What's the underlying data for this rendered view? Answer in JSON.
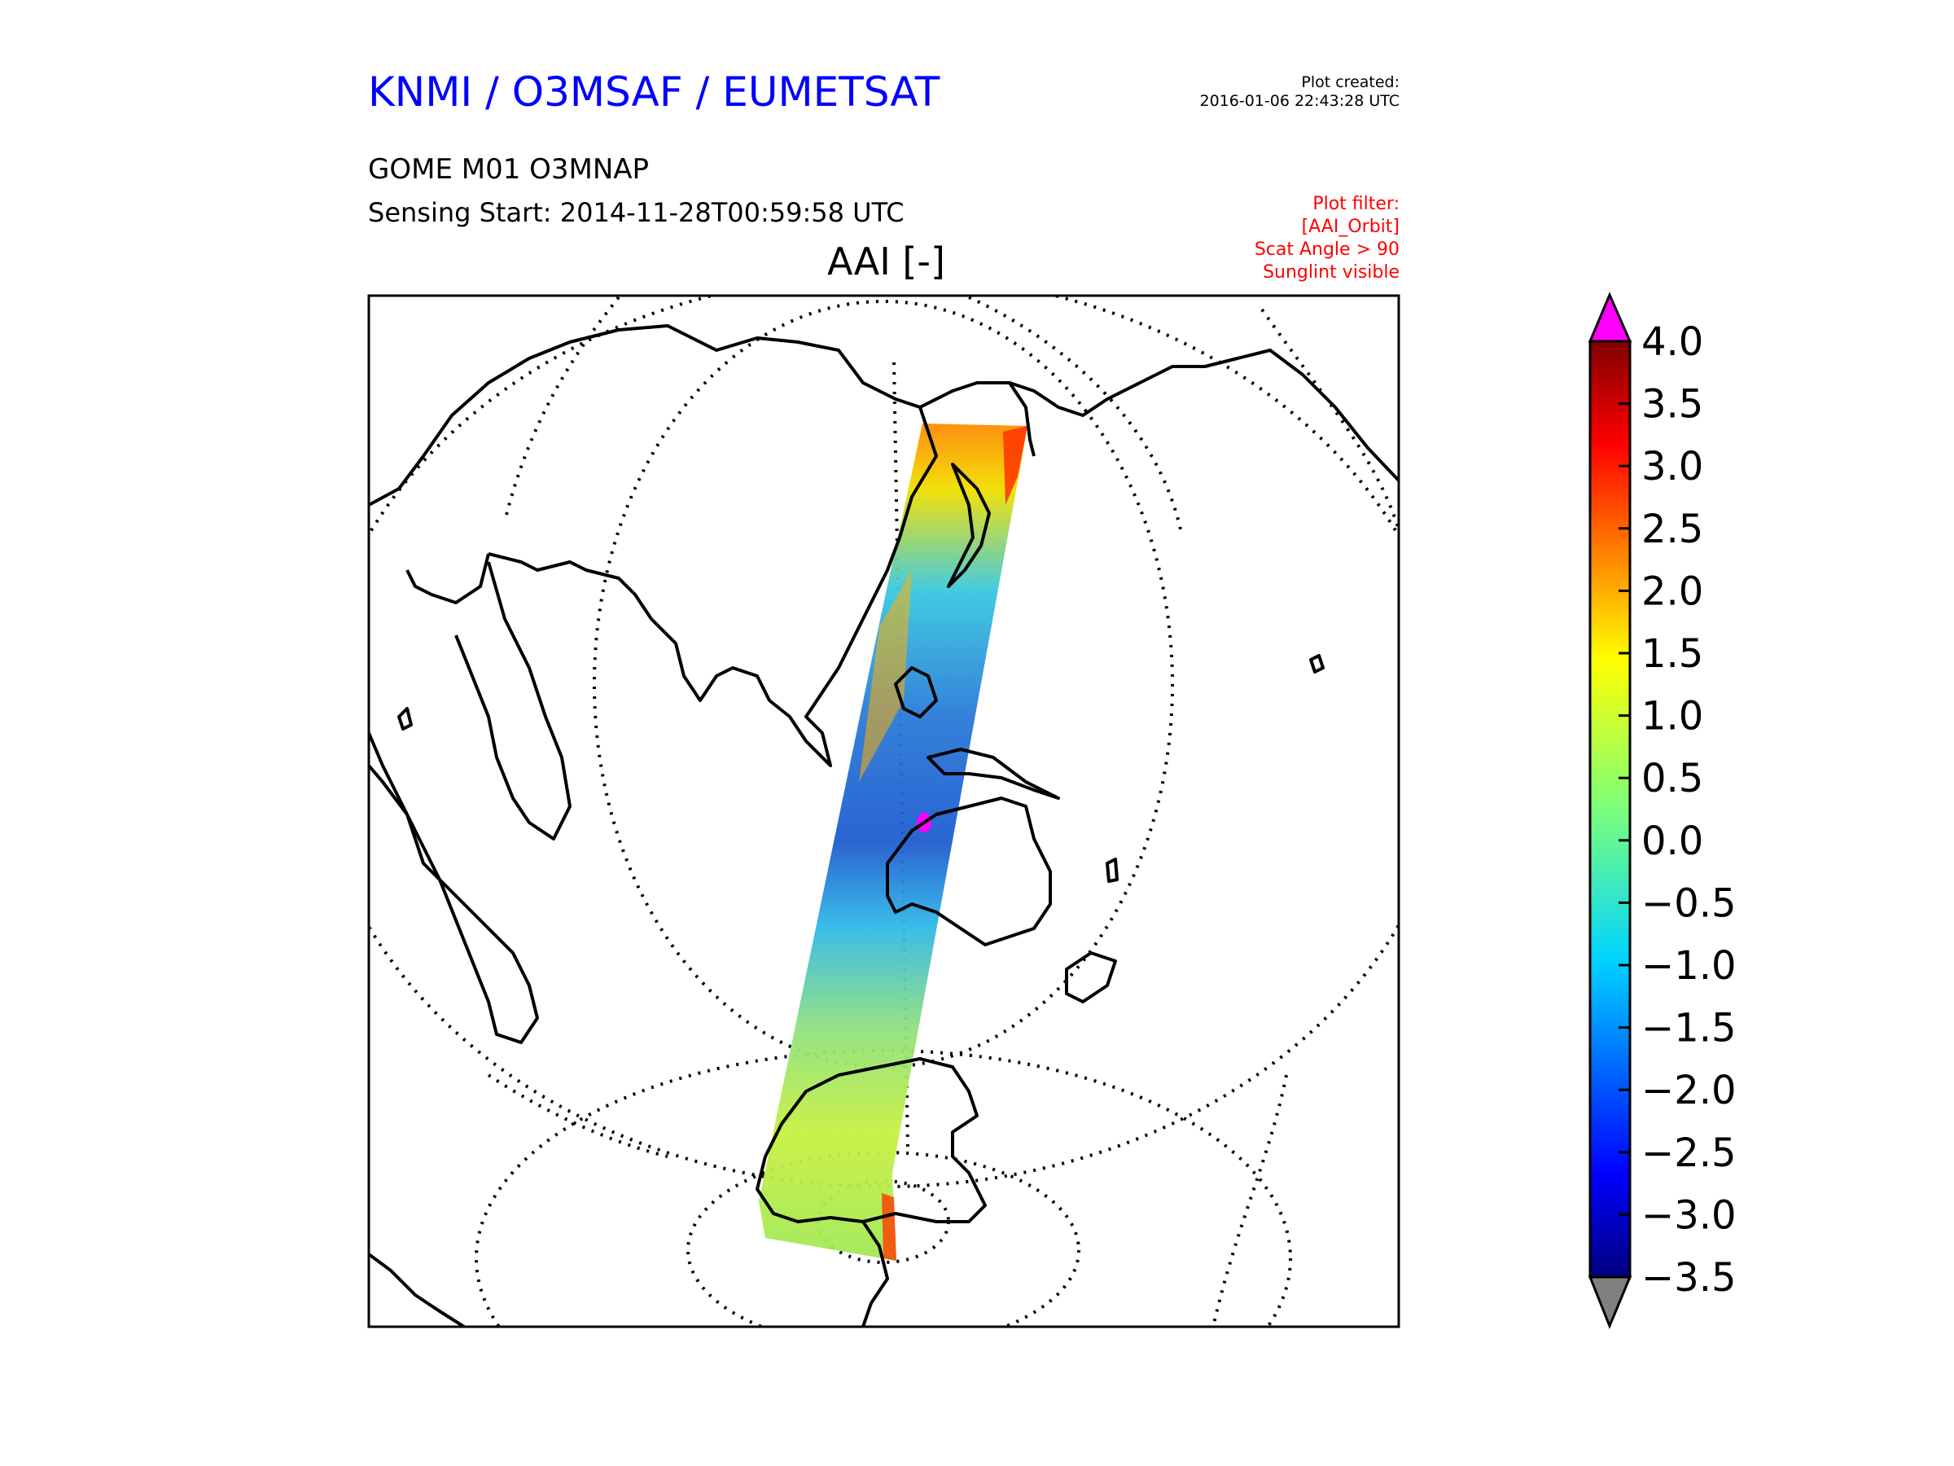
{
  "header": {
    "organization": "KNMI / O3MSAF / EUMETSAT",
    "created_label": "Plot created:",
    "created_time": "2016-01-06 22:43:28 UTC",
    "product": "GOME M01 O3MNAP",
    "sensing_start": "Sensing Start: 2014-11-28T00:59:58 UTC",
    "filters": [
      "Plot filter:",
      "[AAI_Orbit]",
      "Scat Angle > 90",
      "Sunglint visible"
    ]
  },
  "plot": {
    "title": "AAI [-]",
    "colors": {
      "title": "#0000ff",
      "filter": "#ff0000",
      "over": "#ff00ff",
      "under": "#808080"
    }
  },
  "colorbar": {
    "min": -3.5,
    "max": 4.0,
    "extend": "both",
    "ticks": [
      {
        "value": 4.0,
        "label": "4.0"
      },
      {
        "value": 3.5,
        "label": "3.5"
      },
      {
        "value": 3.0,
        "label": "3.0"
      },
      {
        "value": 2.5,
        "label": "2.5"
      },
      {
        "value": 2.0,
        "label": "2.0"
      },
      {
        "value": 1.5,
        "label": "1.5"
      },
      {
        "value": 1.0,
        "label": "1.0"
      },
      {
        "value": 0.5,
        "label": "0.5"
      },
      {
        "value": 0.0,
        "label": "0.0"
      },
      {
        "value": -0.5,
        "label": "−0.5"
      },
      {
        "value": -1.0,
        "label": "−1.0"
      },
      {
        "value": -1.5,
        "label": "−1.5"
      },
      {
        "value": -2.0,
        "label": "−2.0"
      },
      {
        "value": -2.5,
        "label": "−2.5"
      },
      {
        "value": -3.0,
        "label": "−3.0"
      },
      {
        "value": -3.5,
        "label": "−3.5"
      }
    ]
  }
}
